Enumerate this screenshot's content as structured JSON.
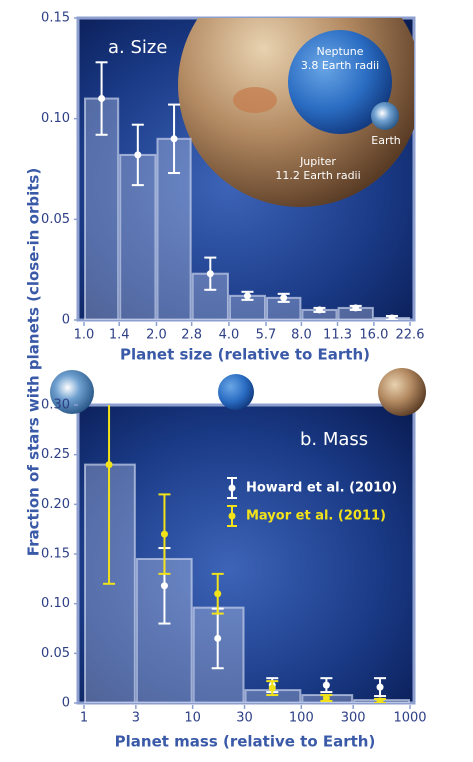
{
  "chart_data": [
    {
      "type": "histogram",
      "panel_label": "a. Size",
      "xlabel": "Planet size (relative to Earth)",
      "ylabel": "Fraction of stars with planets (close-in orbits)",
      "xscale": "log",
      "bins": [
        1.0,
        1.4,
        2.0,
        2.8,
        4.0,
        5.7,
        8.0,
        11.3,
        16.0,
        22.6
      ],
      "values": [
        0.11,
        0.082,
        0.09,
        0.023,
        0.012,
        0.011,
        0.005,
        0.006,
        0.001
      ],
      "errors": [
        0.018,
        0.015,
        0.017,
        0.008,
        0.002,
        0.002,
        0.001,
        0.001,
        0.001
      ],
      "color": "#c8d2eb",
      "marker_color": "#ffffff",
      "xlim": [
        1.0,
        22.6
      ],
      "ylim": [
        0,
        0.15
      ],
      "xticks": [
        {
          "value": 1.0,
          "label": "1.0"
        },
        1.4,
        {
          "value": 2.0,
          "label": "2.0"
        },
        2.8,
        {
          "value": 4.0,
          "label": "4.0"
        },
        5.7,
        {
          "value": 8.0,
          "label": "8.0"
        },
        11.3,
        {
          "value": 16.0,
          "label": "16.0"
        },
        22.6
      ],
      "yticks": [
        0,
        0.05,
        {
          "value": 0.1,
          "label": "0.10"
        },
        0.15
      ],
      "planet_labels": [
        {
          "name": "Neptune",
          "size": "3.8 Earth radii"
        },
        {
          "name": "Earth"
        },
        {
          "name": "Jupiter",
          "size": "11.2 Earth radii"
        }
      ]
    },
    {
      "type": "histogram",
      "panel_label": "b. Mass",
      "xlabel": "Planet mass (relative to Earth)",
      "xscale": "log",
      "bins": [
        1,
        3,
        10,
        30,
        100,
        300,
        1000
      ],
      "values": [
        0.24,
        0.145,
        0.096,
        0.013,
        0.008,
        0.003
      ],
      "color": "#c8d2eb",
      "xlim": [
        1,
        1000
      ],
      "ylim": [
        0,
        0.3
      ],
      "xticks": [
        1,
        3,
        10,
        30,
        100,
        300,
        1000
      ],
      "yticks": [
        0,
        0.05,
        {
          "value": 0.1,
          "label": "0.10"
        },
        0.15,
        {
          "value": 0.2,
          "label": "0.20"
        },
        0.25,
        {
          "value": 0.3,
          "label": "0.30"
        }
      ],
      "legend": "right",
      "series": [
        {
          "name": "Howard et al. (2010)",
          "color": "#ffffff",
          "x": [
            5.5,
            17,
            54,
            170,
            530
          ],
          "values": [
            0.118,
            0.065,
            0.018,
            0.018,
            0.016
          ],
          "errors": [
            0.038,
            0.03,
            0.007,
            0.007,
            0.009
          ]
        },
        {
          "name": "Mayor et al. (2011)",
          "color": "#f2e21a",
          "x": [
            1.7,
            5.5,
            17,
            54,
            170,
            530
          ],
          "values": [
            0.24,
            0.17,
            0.11,
            0.015,
            0.005,
            0.002
          ],
          "errors": [
            0.12,
            0.04,
            0.02,
            0.007,
            0.003,
            0.002
          ]
        }
      ]
    }
  ]
}
